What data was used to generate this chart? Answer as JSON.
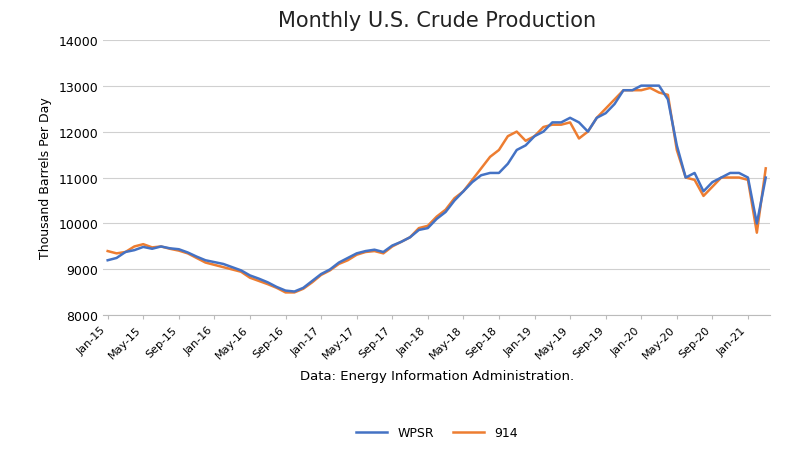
{
  "title": "Monthly U.S. Crude Production",
  "ylabel": "Thousand Barrels Per Day",
  "xlabel": "Data: Energy Information Administration.",
  "ylim": [
    8000,
    14000
  ],
  "yticks": [
    8000,
    9000,
    10000,
    11000,
    12000,
    13000,
    14000
  ],
  "background_color": "#ffffff",
  "grid_color": "#d0d0d0",
  "line_color_wpsr": "#4472c4",
  "line_color_914": "#ed7d31",
  "legend_labels": [
    "WPSR",
    "914"
  ],
  "wpsr": [
    9200,
    9250,
    9380,
    9420,
    9490,
    9450,
    9500,
    9460,
    9440,
    9370,
    9280,
    9200,
    9160,
    9120,
    9050,
    8980,
    8870,
    8800,
    8720,
    8620,
    8540,
    8520,
    8600,
    8750,
    8900,
    9000,
    9150,
    9250,
    9350,
    9400,
    9430,
    9380,
    9520,
    9600,
    9700,
    9860,
    9900,
    10100,
    10250,
    10500,
    10700,
    10900,
    11050,
    11100,
    11100,
    11300,
    11600,
    11700,
    11900,
    12000,
    12200,
    12200,
    12300,
    12200,
    12000,
    12300,
    12400,
    12600,
    12900,
    12900,
    13000,
    13000,
    13000,
    12700,
    11700,
    11000,
    11100,
    10700,
    10900,
    11000,
    11100,
    11100,
    11000,
    10000,
    11000
  ],
  "s914": [
    9400,
    9350,
    9380,
    9500,
    9550,
    9480,
    9500,
    9450,
    9410,
    9350,
    9250,
    9150,
    9100,
    9050,
    9000,
    8950,
    8820,
    8750,
    8680,
    8600,
    8500,
    8500,
    8580,
    8720,
    8880,
    8980,
    9120,
    9200,
    9320,
    9380,
    9400,
    9350,
    9500,
    9600,
    9700,
    9900,
    9950,
    10150,
    10300,
    10550,
    10700,
    10950,
    11200,
    11450,
    11600,
    11900,
    12000,
    11800,
    11900,
    12100,
    12150,
    12150,
    12200,
    11850,
    12000,
    12300,
    12500,
    12700,
    12900,
    12900,
    12900,
    12950,
    12850,
    12800,
    11600,
    11000,
    10950,
    10600,
    10800,
    11000,
    11000,
    11000,
    10950,
    9800,
    11200
  ],
  "xtick_labels": [
    "Jan-15",
    "May-15",
    "Sep-15",
    "Jan-16",
    "May-16",
    "Sep-16",
    "Jan-17",
    "May-17",
    "Sep-17",
    "Jan-18",
    "May-18",
    "Sep-18",
    "Jan-19",
    "May-19",
    "Sep-19",
    "Jan-20",
    "May-20",
    "Sep-20",
    "Jan-21"
  ],
  "xtick_positions": [
    0,
    4,
    8,
    12,
    16,
    20,
    24,
    28,
    32,
    36,
    40,
    44,
    48,
    52,
    56,
    60,
    64,
    68,
    72
  ]
}
